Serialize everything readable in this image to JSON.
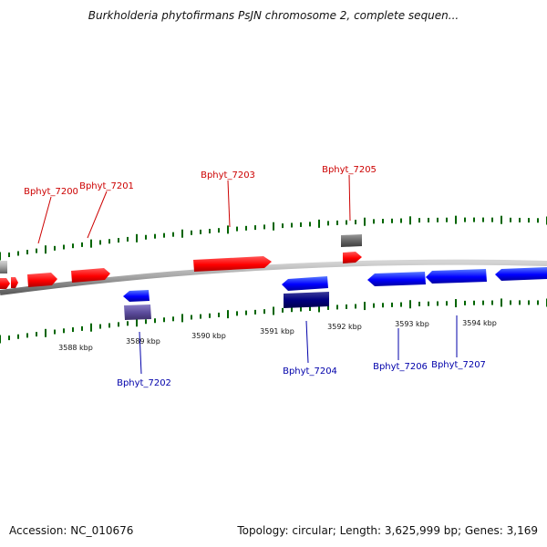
{
  "title": "Burkholderia phytofirmans PsJN chromosome 2, complete sequen...",
  "footer": {
    "accession": "Accession: NC_010676",
    "summary": "Topology: circular; Length: 3,625,999 bp; Genes: 3,169"
  },
  "colors": {
    "forward_gene": "#ff0000",
    "reverse_gene": "#0000ff",
    "reverse_gene_alt": "#5a4a9a",
    "reverse_gene_dark": "#000080",
    "forward_other": "#666666",
    "backbone": "#888888",
    "tick": "#006400",
    "forward_label": "#cc0000",
    "reverse_label": "#0000aa",
    "ruler_text": "#111111"
  },
  "ruler_labels": [
    "3588 kbp",
    "3589 kbp",
    "3590 kbp",
    "3591 kbp",
    "3592 kbp",
    "3593 kbp",
    "3594 kbp"
  ],
  "forward_labels": [
    "Bphyt_7200",
    "Bphyt_7201",
    "Bphyt_7203",
    "Bphyt_7205"
  ],
  "reverse_labels": [
    "Bphyt_7202",
    "Bphyt_7204",
    "Bphyt_7206",
    "Bphyt_7207"
  ]
}
